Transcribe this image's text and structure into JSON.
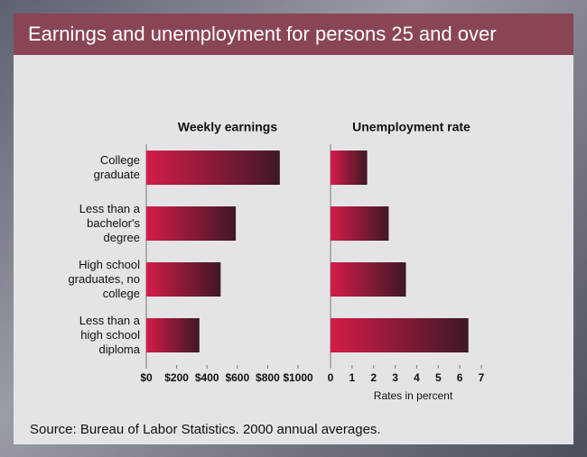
{
  "title": "Earnings and unemployment for persons 25 and over",
  "source": "Source: Bureau of Labor Statistics. 2000 annual averages.",
  "chart_data": [
    {
      "type": "bar",
      "orientation": "horizontal",
      "title": "Weekly earnings",
      "categories": [
        "College graduate",
        "Less than a bachelor's degree",
        "High school graduates, no college",
        "Less than a high school diploma"
      ],
      "values": [
        880,
        590,
        490,
        350
      ],
      "color": "#d41c48",
      "xlim": [
        0,
        1000
      ],
      "xticks": [
        {
          "value": 0,
          "label": "$0"
        },
        {
          "value": 200,
          "label": "$200"
        },
        {
          "value": 400,
          "label": "$400"
        },
        {
          "value": 600,
          "label": "$600"
        },
        {
          "value": 800,
          "label": "$800"
        },
        {
          "value": 1000,
          "label": "$1000"
        }
      ]
    },
    {
      "type": "bar",
      "orientation": "horizontal",
      "title": "Unemployment rate",
      "values": [
        1.7,
        2.7,
        3.5,
        6.4
      ],
      "color": "#d41c48",
      "xlim": [
        0,
        7
      ],
      "xticks": [
        0,
        1,
        2,
        3,
        4,
        5,
        6,
        7
      ],
      "xlabel": "Rates in percent"
    }
  ]
}
